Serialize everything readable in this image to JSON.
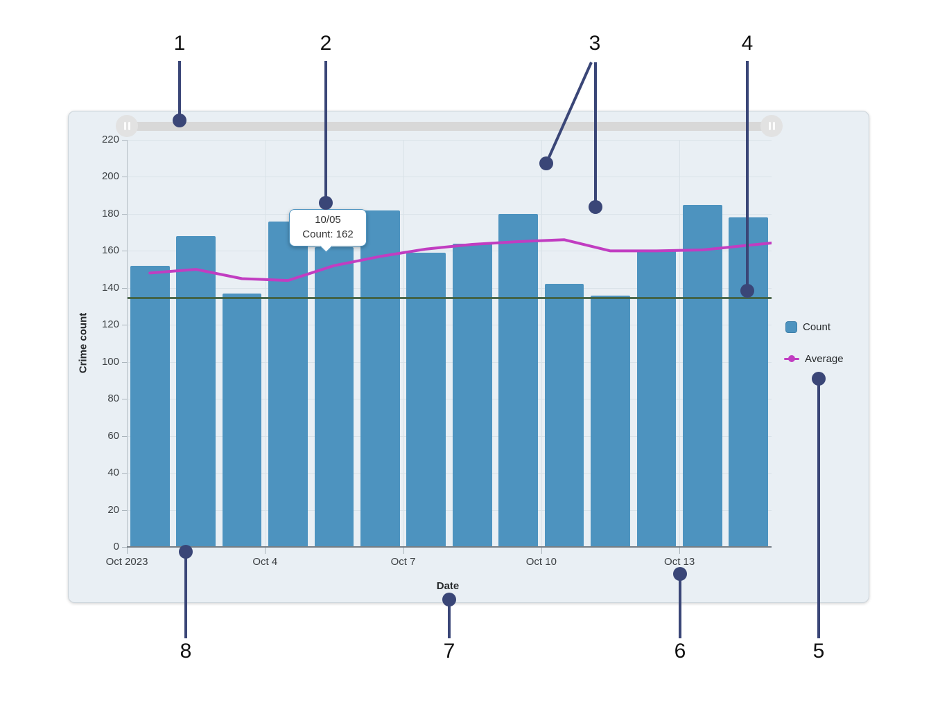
{
  "chart_data": {
    "type": "bar",
    "title": "",
    "xlabel": "Date",
    "ylabel": "Crime count",
    "ylim": [
      0,
      220
    ],
    "grid": true,
    "legend_position": "right",
    "y_ticks": [
      0,
      20,
      40,
      60,
      80,
      100,
      120,
      140,
      160,
      180,
      200,
      220
    ],
    "x": [
      "10/01",
      "10/02",
      "10/03",
      "10/04",
      "10/05",
      "10/06",
      "10/07",
      "10/08",
      "10/09",
      "10/10",
      "10/11",
      "10/12",
      "10/13",
      "10/14"
    ],
    "x_axis_ticks": [
      {
        "label": "Oct 2023",
        "day_index": 0
      },
      {
        "label": "Oct 4",
        "day_index": 3
      },
      {
        "label": "Oct 7",
        "day_index": 6
      },
      {
        "label": "Oct 10",
        "day_index": 9
      },
      {
        "label": "Oct 13",
        "day_index": 12
      }
    ],
    "series": [
      {
        "name": "Count",
        "type": "bar",
        "color": "#4d93bf",
        "values": [
          152,
          168,
          137,
          176,
          162,
          182,
          159,
          164,
          180,
          142,
          136,
          160,
          185,
          178
        ]
      },
      {
        "name": "Average",
        "type": "line",
        "color": "#c13dc1",
        "values": [
          148,
          150,
          145,
          144,
          152,
          157,
          161,
          163.5,
          165,
          166,
          160,
          160,
          160.5,
          163
        ]
      }
    ],
    "guide_line": {
      "value": 135,
      "color": "#42603f"
    }
  },
  "tooltip": {
    "date": "10/05",
    "value": "Count: 162"
  },
  "slider": {
    "left_handle_icon": "grip-pause-icon",
    "right_handle_icon": "grip-pause-icon"
  },
  "callouts": {
    "labels": [
      "1",
      "2",
      "3",
      "4",
      "5",
      "6",
      "7",
      "8"
    ]
  },
  "colors": {
    "bar": "#4d93bf",
    "average_line": "#c13dc1",
    "guide_line": "#42603f",
    "callout": "#3a4677",
    "card_background": "#e9eff4"
  }
}
